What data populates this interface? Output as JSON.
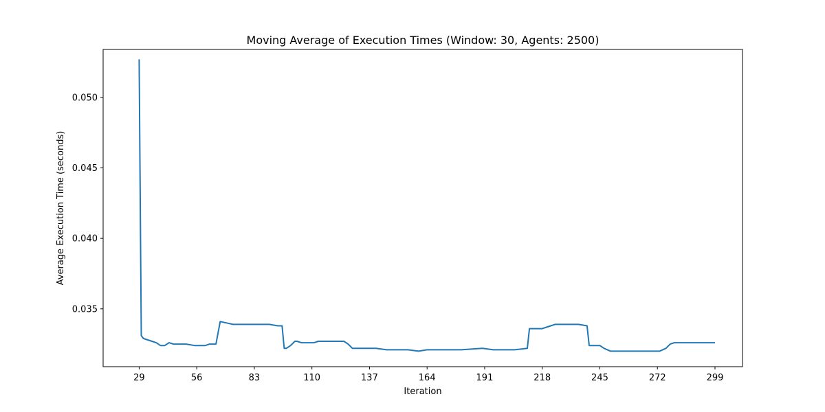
{
  "chart_data": {
    "type": "line",
    "title": "Moving Average of Execution Times (Window: 30, Agents: 2500)",
    "xlabel": "Iteration",
    "ylabel": "Average Execution Time (seconds)",
    "x_ticks": [
      29,
      56,
      83,
      110,
      137,
      164,
      191,
      218,
      245,
      272,
      299
    ],
    "y_ticks": [
      "0.035",
      "0.040",
      "0.045",
      "0.050"
    ],
    "xlim": [
      12.1,
      311.9
    ],
    "ylim": [
      0.0309,
      0.0534
    ],
    "grid": false,
    "legend": "none",
    "color": "#1f77b4",
    "series": [
      {
        "x": [
          29,
          30,
          31,
          33,
          35,
          37,
          39,
          41,
          43,
          45,
          47,
          49,
          51,
          55,
          58,
          60,
          62,
          64,
          65,
          67,
          70,
          73,
          76,
          80,
          83,
          86,
          90,
          94,
          96,
          97,
          98,
          100,
          102,
          103,
          105,
          107,
          109,
          111,
          113,
          117,
          121,
          123,
          125,
          127,
          129,
          131,
          133,
          135,
          140,
          145,
          150,
          155,
          160,
          164,
          170,
          180,
          190,
          195,
          205,
          211,
          212,
          218,
          220,
          222,
          224,
          226,
          230,
          235,
          239,
          240,
          245,
          247,
          250,
          260,
          270,
          273,
          276,
          278,
          280,
          285,
          295,
          299
        ],
        "y": [
          0.0527,
          0.0331,
          0.0329,
          0.0328,
          0.0327,
          0.0326,
          0.0324,
          0.0324,
          0.0326,
          0.0325,
          0.0325,
          0.0325,
          0.0325,
          0.0324,
          0.0324,
          0.0324,
          0.0325,
          0.0325,
          0.0325,
          0.0341,
          0.034,
          0.0339,
          0.0339,
          0.0339,
          0.0339,
          0.0339,
          0.0339,
          0.0338,
          0.0338,
          0.0322,
          0.0322,
          0.0324,
          0.0327,
          0.0327,
          0.0326,
          0.0326,
          0.0326,
          0.0326,
          0.0327,
          0.0327,
          0.0327,
          0.0327,
          0.0327,
          0.0325,
          0.0322,
          0.0322,
          0.0322,
          0.0322,
          0.0322,
          0.0321,
          0.0321,
          0.0321,
          0.032,
          0.0321,
          0.0321,
          0.0321,
          0.0322,
          0.0321,
          0.0321,
          0.0322,
          0.0336,
          0.0336,
          0.0337,
          0.0338,
          0.0339,
          0.0339,
          0.0339,
          0.0339,
          0.0338,
          0.0324,
          0.0324,
          0.0322,
          0.032,
          0.032,
          0.032,
          0.032,
          0.0322,
          0.0325,
          0.0326,
          0.0326,
          0.0326,
          0.0326
        ]
      }
    ]
  }
}
